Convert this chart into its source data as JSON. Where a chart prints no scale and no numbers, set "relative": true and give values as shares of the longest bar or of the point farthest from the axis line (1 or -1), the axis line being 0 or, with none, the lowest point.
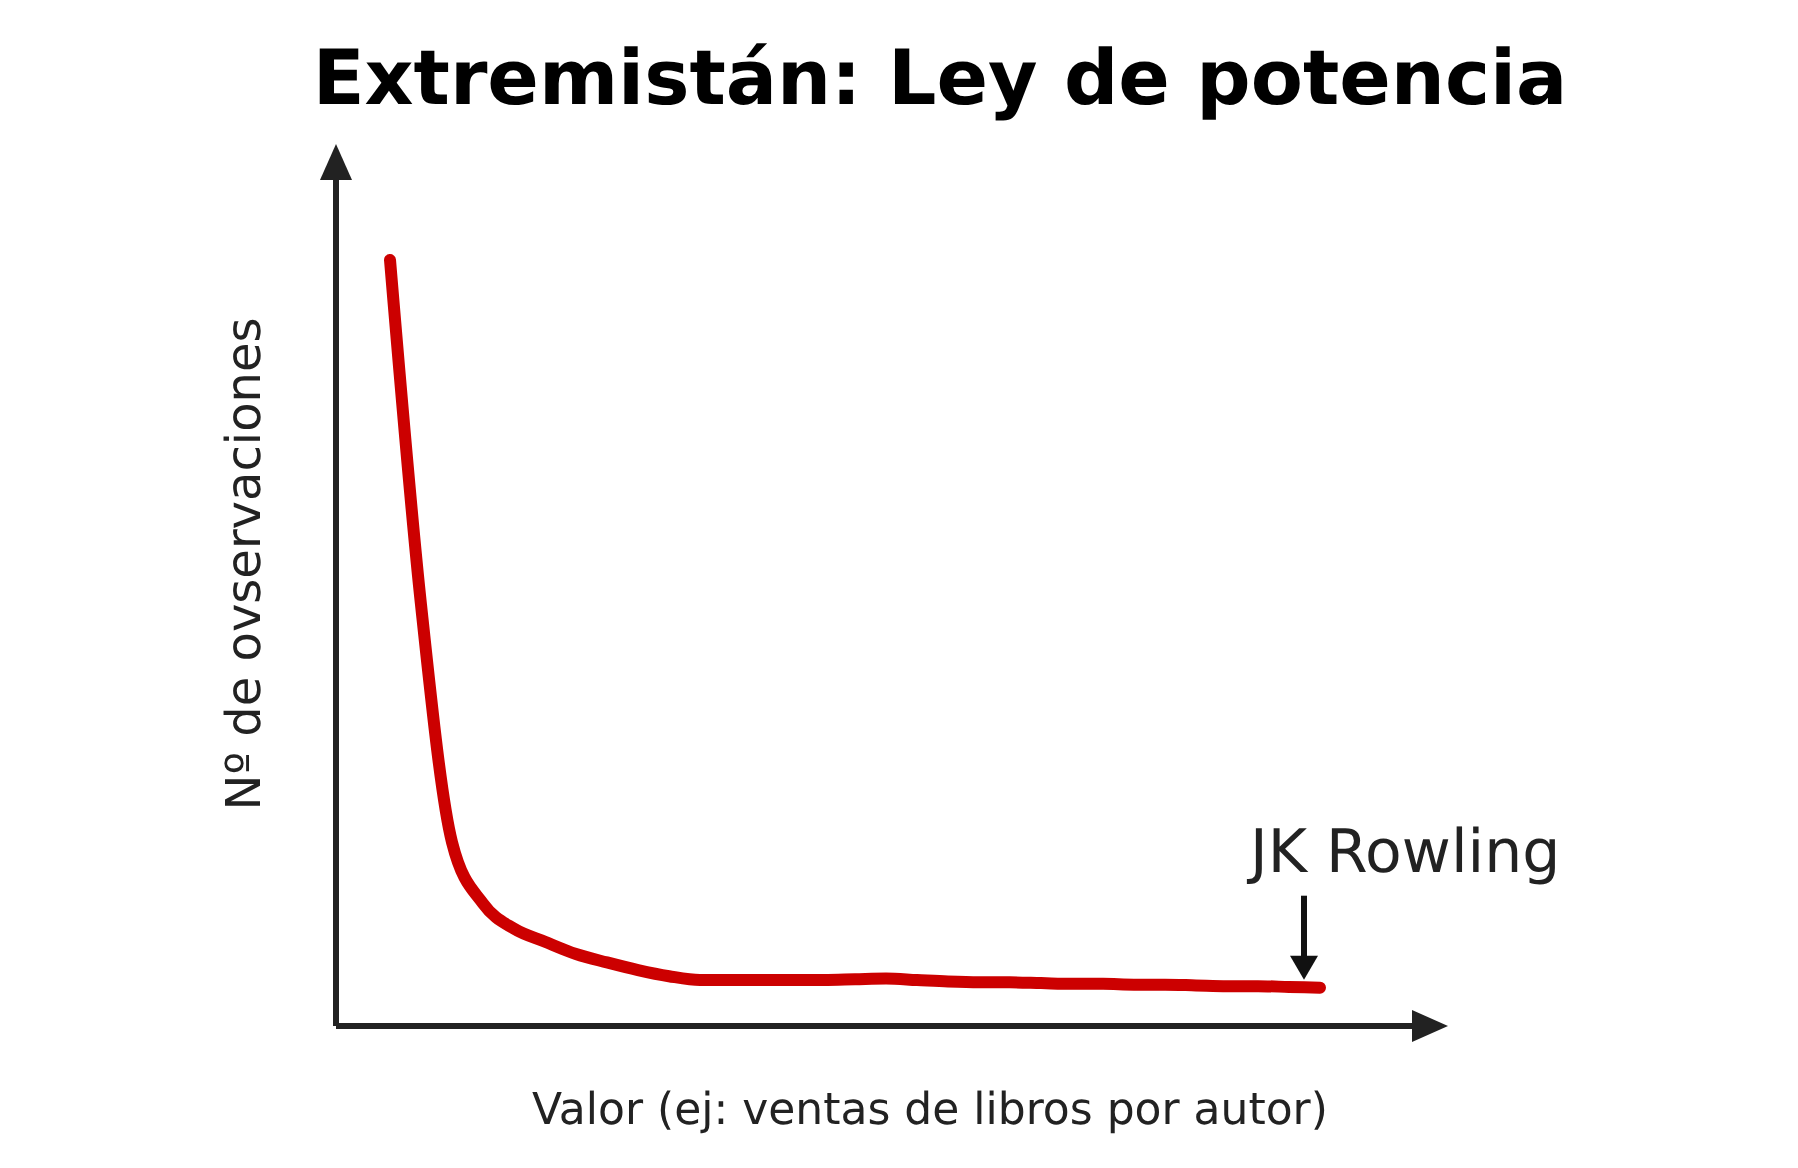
{
  "chart_data": {
    "type": "line",
    "title": "Extremistán: Ley de potencia",
    "xlabel": "Valor (ej: ventas de libros por autor)",
    "ylabel": "Nº de ovservaciones",
    "relative": true,
    "categories": [
      null,
      null,
      null,
      null,
      null,
      null,
      null,
      null,
      null,
      null,
      null,
      null,
      null,
      null,
      null,
      null,
      null,
      null,
      null,
      null,
      null,
      null,
      null,
      null,
      null,
      null,
      null,
      null,
      null,
      null,
      null
    ],
    "series": [
      {
        "color": "#cc0000",
        "values": [
          1.0,
          0.55,
          0.24,
          0.16,
          0.127,
          0.11,
          0.094,
          0.083,
          0.073,
          0.065,
          0.06,
          0.06,
          0.06,
          0.06,
          0.06,
          0.061,
          0.062,
          0.06,
          0.058,
          0.057,
          0.057,
          0.056,
          0.055,
          0.055,
          0.054,
          0.054,
          0.053,
          0.052,
          0.052,
          0.051,
          0.05
        ]
      }
    ],
    "annotations": [
      "JK Rowling"
    ],
    "marker": "none",
    "line_style": "solid"
  }
}
